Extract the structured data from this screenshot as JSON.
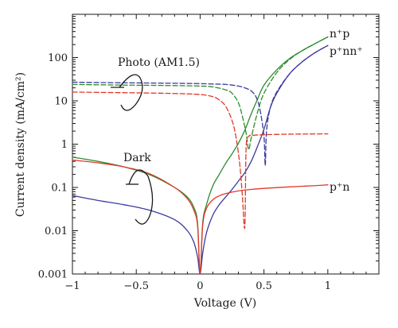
{
  "chart_data": {
    "type": "line",
    "xlabel": "Voltage (V)",
    "ylabel": "Current density (mA/cm²)",
    "xscale": "linear",
    "yscale": "log",
    "xlim": [
      -1,
      1.4
    ],
    "ylim": [
      0.001,
      1000
    ],
    "grid": false,
    "x_ticks": [
      {
        "value": -1,
        "label": "−1"
      },
      {
        "value": -0.5,
        "label": "−0.5"
      },
      {
        "value": 0,
        "label": "0"
      },
      {
        "value": 0.5,
        "label": "0.5"
      },
      {
        "value": 1,
        "label": "1"
      }
    ],
    "y_ticks": [
      {
        "value": 0.001,
        "label": "0.001"
      },
      {
        "value": 0.01,
        "label": "0.01"
      },
      {
        "value": 0.1,
        "label": "0.1"
      },
      {
        "value": 1,
        "label": "1"
      },
      {
        "value": 10,
        "label": "10"
      },
      {
        "value": 100,
        "label": "100"
      }
    ],
    "annotations": {
      "photo": "Photo (AM1.5)",
      "dark": "Dark"
    },
    "series": [
      {
        "name": "n⁺p",
        "condition": "Dark",
        "color": "#2e8b2e",
        "style": "solid",
        "x": [
          -1,
          -0.8,
          -0.6,
          -0.4,
          -0.2,
          -0.1,
          -0.05,
          -0.02,
          0,
          0.02,
          0.05,
          0.1,
          0.15,
          0.2,
          0.25,
          0.3,
          0.35,
          0.4,
          0.45,
          0.5,
          0.6,
          0.7,
          0.8,
          0.9,
          1.0
        ],
        "y": [
          0.5,
          0.4,
          0.3,
          0.2,
          0.1,
          0.06,
          0.035,
          0.015,
          0.001,
          0.015,
          0.04,
          0.11,
          0.2,
          0.36,
          0.6,
          1.05,
          2.1,
          5,
          11,
          23,
          52,
          95,
          145,
          210,
          300
        ]
      },
      {
        "name": "p⁺nn⁺",
        "condition": "Dark",
        "color": "#3a3aa0",
        "style": "solid",
        "x": [
          -1,
          -0.8,
          -0.6,
          -0.4,
          -0.2,
          -0.1,
          -0.05,
          -0.02,
          0,
          0.02,
          0.05,
          0.1,
          0.15,
          0.2,
          0.25,
          0.3,
          0.35,
          0.4,
          0.45,
          0.5,
          0.55,
          0.6,
          0.7,
          0.8,
          0.9,
          1.0
        ],
        "y": [
          0.065,
          0.05,
          0.04,
          0.03,
          0.018,
          0.01,
          0.0055,
          0.0025,
          0.001,
          0.003,
          0.009,
          0.023,
          0.04,
          0.06,
          0.09,
          0.14,
          0.22,
          0.4,
          0.9,
          2.2,
          7,
          15,
          42,
          80,
          130,
          190
        ]
      },
      {
        "name": "p⁺n",
        "condition": "Dark",
        "color": "#e0392b",
        "style": "solid",
        "x": [
          -1,
          -0.8,
          -0.6,
          -0.4,
          -0.2,
          -0.1,
          -0.05,
          -0.02,
          0,
          0.02,
          0.05,
          0.1,
          0.15,
          0.2,
          0.3,
          0.4,
          0.5,
          0.7,
          0.9,
          1.0
        ],
        "y": [
          0.43,
          0.37,
          0.3,
          0.21,
          0.1,
          0.055,
          0.03,
          0.013,
          0.001,
          0.013,
          0.033,
          0.052,
          0.064,
          0.072,
          0.083,
          0.09,
          0.095,
          0.103,
          0.11,
          0.115
        ]
      },
      {
        "name": "n⁺p",
        "condition": "Photo (AM1.5)",
        "color": "#2e8b2e",
        "style": "dashed",
        "x": [
          -1,
          -0.8,
          -0.5,
          -0.2,
          0,
          0.1,
          0.2,
          0.25,
          0.3,
          0.33,
          0.36,
          0.38,
          0.4,
          0.45,
          0.5,
          0.6,
          0.7,
          0.8,
          0.9,
          1.0
        ],
        "y": [
          24,
          23.5,
          23,
          22.5,
          22,
          21,
          18,
          15,
          9,
          4.5,
          1.8,
          0.75,
          1.4,
          5.5,
          15,
          45,
          90,
          145,
          210,
          300
        ]
      },
      {
        "name": "p⁺nn⁺",
        "condition": "Photo (AM1.5)",
        "color": "#3a3aa0",
        "style": "dashed",
        "x": [
          -1,
          -0.8,
          -0.5,
          -0.2,
          0,
          0.1,
          0.2,
          0.3,
          0.35,
          0.4,
          0.44,
          0.47,
          0.5,
          0.51,
          0.52,
          0.55,
          0.6,
          0.7,
          0.8,
          0.9,
          1.0
        ],
        "y": [
          27,
          26.5,
          26,
          25.5,
          25,
          24.5,
          24,
          22,
          20,
          17,
          12,
          6,
          1.5,
          0.32,
          2,
          7,
          16,
          42,
          80,
          130,
          190
        ]
      },
      {
        "name": "p⁺n",
        "condition": "Photo (AM1.5)",
        "color": "#e0392b",
        "style": "dashed",
        "x": [
          -1,
          -0.8,
          -0.5,
          -0.2,
          0,
          0.1,
          0.15,
          0.2,
          0.25,
          0.28,
          0.31,
          0.33,
          0.35,
          0.36,
          0.38,
          0.42,
          0.5,
          0.7,
          0.9,
          1.0
        ],
        "y": [
          16,
          15.7,
          15.3,
          14.8,
          14,
          12.5,
          10.5,
          7.5,
          3.5,
          1.5,
          0.35,
          0.07,
          0.012,
          0.8,
          1.5,
          1.6,
          1.65,
          1.7,
          1.72,
          1.73
        ]
      }
    ],
    "curve_labels": [
      {
        "text": "n⁺p",
        "near": "n⁺p curves, upper right"
      },
      {
        "text": "p⁺nn⁺",
        "near": "p⁺nn⁺ curves, upper right"
      },
      {
        "text": "p⁺n",
        "near": "p⁺n dark curve, right"
      }
    ]
  }
}
